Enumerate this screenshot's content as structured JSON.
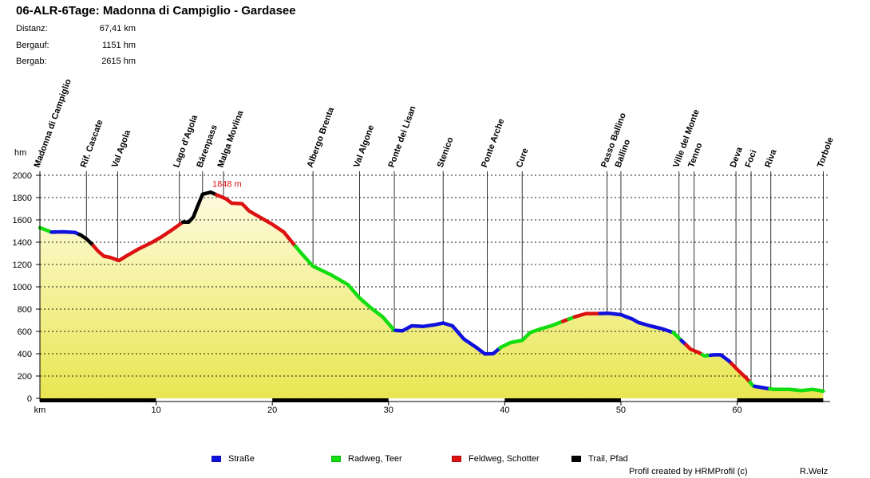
{
  "header": {
    "title": "06-ALR-6Tage: Madonna di Campiglio - Gardasee",
    "stats": [
      {
        "label": "Distanz:",
        "value": "67,41 km"
      },
      {
        "label": "Bergauf:",
        "value": "1151 hm"
      },
      {
        "label": "Bergab:",
        "value": "2615 hm"
      }
    ]
  },
  "chart_data": {
    "type": "area",
    "title": "06-ALR-6Tage: Madonna di Campiglio - Gardasee",
    "xlabel": "km",
    "ylabel": "hm",
    "xlim": [
      0,
      68
    ],
    "ylim": [
      0,
      2000
    ],
    "x_ticks": [
      10,
      20,
      30,
      40,
      50,
      60
    ],
    "y_ticks": [
      0,
      200,
      400,
      600,
      800,
      1000,
      1200,
      1400,
      1600,
      1800,
      2000
    ],
    "grid": true,
    "max_label": "1848 m",
    "max_point": [
      14.7,
      1848
    ],
    "profile": [
      [
        0,
        1530
      ],
      [
        1,
        1490
      ],
      [
        2,
        1493
      ],
      [
        3,
        1488
      ],
      [
        3.5,
        1465
      ],
      [
        4,
        1430
      ],
      [
        4.5,
        1380
      ],
      [
        5,
        1320
      ],
      [
        5.5,
        1275
      ],
      [
        6,
        1265
      ],
      [
        6.8,
        1235
      ],
      [
        7.5,
        1280
      ],
      [
        8.5,
        1340
      ],
      [
        9.5,
        1390
      ],
      [
        10.5,
        1450
      ],
      [
        11.5,
        1520
      ],
      [
        12.3,
        1580
      ],
      [
        12.8,
        1580
      ],
      [
        13.2,
        1625
      ],
      [
        13.6,
        1730
      ],
      [
        14,
        1830
      ],
      [
        14.7,
        1848
      ],
      [
        15.3,
        1820
      ],
      [
        16,
        1790
      ],
      [
        16.5,
        1750
      ],
      [
        17.4,
        1745
      ],
      [
        18,
        1680
      ],
      [
        19,
        1620
      ],
      [
        20,
        1560
      ],
      [
        21,
        1490
      ],
      [
        21.7,
        1400
      ],
      [
        22.5,
        1300
      ],
      [
        23.5,
        1185
      ],
      [
        25,
        1110
      ],
      [
        26.5,
        1020
      ],
      [
        27.5,
        900
      ],
      [
        28.5,
        810
      ],
      [
        29.5,
        730
      ],
      [
        30.5,
        610
      ],
      [
        31.2,
        605
      ],
      [
        32,
        650
      ],
      [
        33,
        645
      ],
      [
        34,
        660
      ],
      [
        34.7,
        675
      ],
      [
        35.5,
        650
      ],
      [
        36.5,
        530
      ],
      [
        37.5,
        460
      ],
      [
        38.3,
        398
      ],
      [
        39,
        400
      ],
      [
        39.7,
        460
      ],
      [
        40.5,
        500
      ],
      [
        41.5,
        520
      ],
      [
        42.2,
        590
      ],
      [
        43,
        620
      ],
      [
        44,
        650
      ],
      [
        45,
        690
      ],
      [
        46,
        730
      ],
      [
        47,
        760
      ],
      [
        48,
        760
      ],
      [
        49,
        762
      ],
      [
        50,
        750
      ],
      [
        51,
        710
      ],
      [
        51.5,
        680
      ],
      [
        52.5,
        650
      ],
      [
        53.5,
        625
      ],
      [
        54.5,
        590
      ],
      [
        55.2,
        520
      ],
      [
        56,
        440
      ],
      [
        56.7,
        410
      ],
      [
        57.2,
        380
      ],
      [
        58,
        390
      ],
      [
        58.6,
        390
      ],
      [
        59.3,
        335
      ],
      [
        60,
        260
      ],
      [
        60.8,
        180
      ],
      [
        61.4,
        110
      ],
      [
        62.5,
        90
      ],
      [
        63.2,
        80
      ],
      [
        64.5,
        80
      ],
      [
        65.5,
        70
      ],
      [
        66.5,
        80
      ],
      [
        67.4,
        65
      ]
    ],
    "surface_segments": [
      {
        "type": "Radweg, Teer",
        "from": 0,
        "to": 1
      },
      {
        "type": "Straße",
        "from": 1,
        "to": 3.4
      },
      {
        "type": "Trail, Pfad",
        "from": 3.4,
        "to": 4.6
      },
      {
        "type": "Feldweg, Schotter",
        "from": 4.6,
        "to": 12.3
      },
      {
        "type": "Trail, Pfad",
        "from": 12.3,
        "to": 15.2
      },
      {
        "type": "Feldweg, Schotter",
        "from": 15.2,
        "to": 22
      },
      {
        "type": "Radweg, Teer",
        "from": 22,
        "to": 30.6
      },
      {
        "type": "Straße",
        "from": 30.6,
        "to": 39.6
      },
      {
        "type": "Radweg, Teer",
        "from": 39.6,
        "to": 45
      },
      {
        "type": "Feldweg, Schotter",
        "from": 45,
        "to": 45.5
      },
      {
        "type": "Radweg, Teer",
        "from": 45.5,
        "to": 46
      },
      {
        "type": "Feldweg, Schotter",
        "from": 46,
        "to": 48.2
      },
      {
        "type": "Straße",
        "from": 48.2,
        "to": 54.5
      },
      {
        "type": "Radweg, Teer",
        "from": 54.5,
        "to": 55.2
      },
      {
        "type": "Straße",
        "from": 55.2,
        "to": 55.6
      },
      {
        "type": "Feldweg, Schotter",
        "from": 55.6,
        "to": 57
      },
      {
        "type": "Radweg, Teer",
        "from": 57,
        "to": 57.7
      },
      {
        "type": "Straße",
        "from": 57.7,
        "to": 59.5
      },
      {
        "type": "Feldweg, Schotter",
        "from": 59.5,
        "to": 61.1
      },
      {
        "type": "Radweg, Teer",
        "from": 61.1,
        "to": 61.5
      },
      {
        "type": "Straße",
        "from": 61.5,
        "to": 62.8
      },
      {
        "type": "Radweg, Teer",
        "from": 62.8,
        "to": 67.41
      }
    ],
    "scale_bar_segments": [
      [
        0,
        10
      ],
      [
        20,
        30
      ],
      [
        40,
        50
      ],
      [
        60,
        67.41
      ]
    ],
    "waypoints": [
      {
        "name": "Madonna di Campiglio",
        "km": 0
      },
      {
        "name": "Rif. Cascate",
        "km": 4
      },
      {
        "name": "Val Agola",
        "km": 6.7
      },
      {
        "name": "Lago d'Agola",
        "km": 12
      },
      {
        "name": "Bärenpass",
        "km": 14
      },
      {
        "name": "Malga Movlina",
        "km": 15.8
      },
      {
        "name": "Albergo Brenta",
        "km": 23.5
      },
      {
        "name": "Val Algone",
        "km": 27.5
      },
      {
        "name": "Ponte dei Lisan",
        "km": 30.5
      },
      {
        "name": "Stenico",
        "km": 34.7
      },
      {
        "name": "Ponte Arche",
        "km": 38.5
      },
      {
        "name": "Cure",
        "km": 41.5
      },
      {
        "name": "Passo Ballino",
        "km": 48.8
      },
      {
        "name": "Ballino",
        "km": 50
      },
      {
        "name": "Ville del Monte",
        "km": 55
      },
      {
        "name": "Tenno",
        "km": 56.3
      },
      {
        "name": "Deva",
        "km": 59.9
      },
      {
        "name": "Foci",
        "km": 61.2
      },
      {
        "name": "Riva",
        "km": 62.9
      },
      {
        "name": "Torbole",
        "km": 67.41
      }
    ],
    "legend": [
      {
        "label": "Straße",
        "color": "#1111dd"
      },
      {
        "label": "Radweg, Teer",
        "color": "#11dd11"
      },
      {
        "label": "Feldweg, Schotter",
        "color": "#dd1111"
      },
      {
        "label": "Trail, Pfad",
        "color": "#000000"
      }
    ],
    "colors": {
      "Straße": "#1111dd",
      "Radweg, Teer": "#11dd11",
      "Feldweg, Schotter": "#dd1111",
      "Trail, Pfad": "#000000",
      "fill_top": "#fffbe0",
      "fill_bottom": "#e8e650",
      "max_label": "#dd1111"
    }
  },
  "footer": {
    "credit": "Profil created by HRMProfil (c)",
    "author": "R.Welz"
  }
}
